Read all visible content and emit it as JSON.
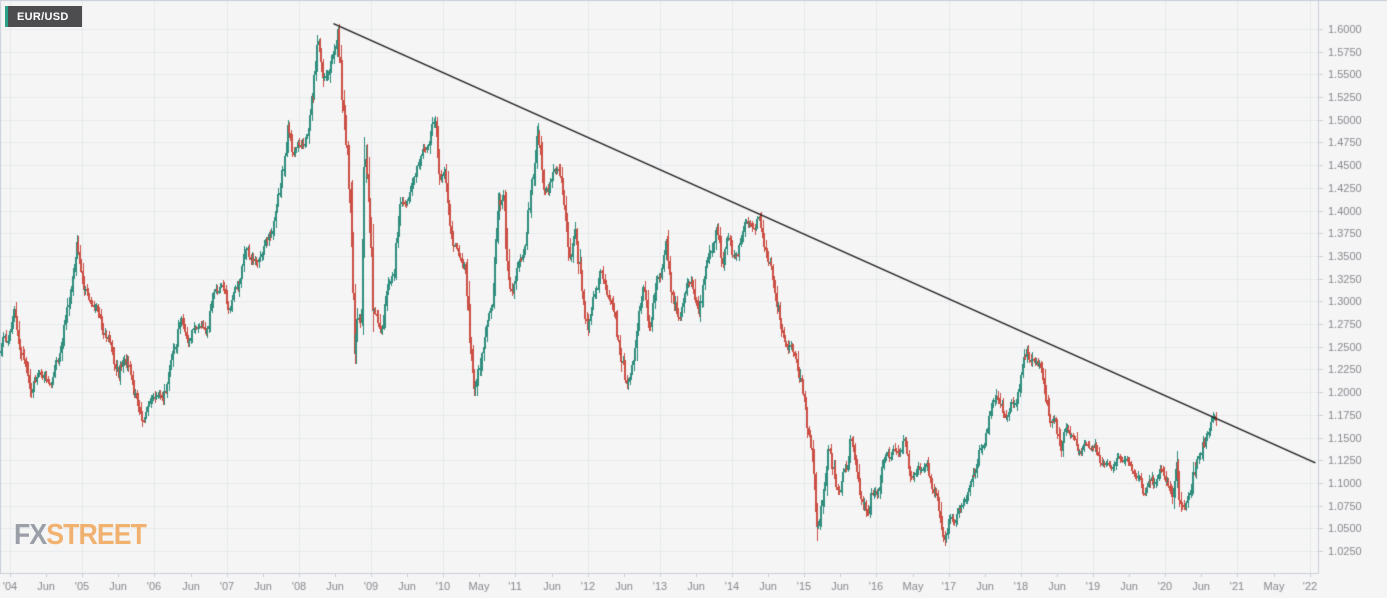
{
  "header": {
    "symbol": "EUR/USD"
  },
  "watermark": {
    "part1": "FX",
    "part2": "STREET"
  },
  "chart_data": {
    "type": "candlestick",
    "title": "EUR/USD weekly candles 2004-2020 with descending trendline from 2008 high projected to 2022",
    "symbol": "EUR/USD",
    "legend_position": "top-left",
    "grid": true,
    "y_axis": {
      "side": "right",
      "min": 1.025,
      "max": 1.6,
      "step": 0.025,
      "tick_labels": [
        "1.6000",
        "1.5750",
        "1.5500",
        "1.5250",
        "1.5000",
        "1.4750",
        "1.4500",
        "1.4250",
        "1.4000",
        "1.3750",
        "1.3500",
        "1.3250",
        "1.3000",
        "1.2750",
        "1.2500",
        "1.2250",
        "1.2000",
        "1.1750",
        "1.1500",
        "1.1250",
        "1.1000",
        "1.0750",
        "1.0500",
        "1.0250"
      ]
    },
    "x_axis": {
      "start_year": 2004,
      "end_year": 2022,
      "tick_interval_years": 0.5,
      "tick_labels": [
        "'04",
        "Jun",
        "'05",
        "Jun",
        "'06",
        "Jun",
        "'07",
        "Jun",
        "'08",
        "Jun",
        "'09",
        "Jun",
        "'10",
        "May",
        "'11",
        "Jun",
        "'12",
        "Jun",
        "'13",
        "Jun",
        "'14",
        "Jun",
        "'15",
        "Jun",
        "'16",
        "May",
        "'17",
        "Jun",
        "'18",
        "Jun",
        "'19",
        "Jun",
        "'20",
        "Jun",
        "'21",
        "May",
        "'22"
      ]
    },
    "trendline": {
      "from_year": 2008.48,
      "from_price": 1.606,
      "to_year": 2022.08,
      "to_price": 1.122,
      "color": "#1f1f1f"
    },
    "generation": {
      "start": 2003.87,
      "end": 2020.71,
      "candles_per_year": 52
    },
    "series_anchor_points": [
      [
        2003.87,
        1.245
      ],
      [
        2004.0,
        1.265
      ],
      [
        2004.08,
        1.288
      ],
      [
        2004.18,
        1.24
      ],
      [
        2004.25,
        1.225
      ],
      [
        2004.33,
        1.2
      ],
      [
        2004.42,
        1.225
      ],
      [
        2004.5,
        1.215
      ],
      [
        2004.58,
        1.21
      ],
      [
        2004.7,
        1.24
      ],
      [
        2004.8,
        1.28
      ],
      [
        2004.95,
        1.358
      ],
      [
        2005.0,
        1.34
      ],
      [
        2005.05,
        1.31
      ],
      [
        2005.15,
        1.3
      ],
      [
        2005.25,
        1.285
      ],
      [
        2005.35,
        1.26
      ],
      [
        2005.45,
        1.245
      ],
      [
        2005.52,
        1.215
      ],
      [
        2005.6,
        1.24
      ],
      [
        2005.7,
        1.215
      ],
      [
        2005.85,
        1.17
      ],
      [
        2005.95,
        1.185
      ],
      [
        2006.05,
        1.2
      ],
      [
        2006.12,
        1.19
      ],
      [
        2006.25,
        1.23
      ],
      [
        2006.38,
        1.28
      ],
      [
        2006.5,
        1.255
      ],
      [
        2006.62,
        1.275
      ],
      [
        2006.73,
        1.265
      ],
      [
        2006.85,
        1.31
      ],
      [
        2006.95,
        1.32
      ],
      [
        2007.05,
        1.295
      ],
      [
        2007.15,
        1.31
      ],
      [
        2007.3,
        1.36
      ],
      [
        2007.42,
        1.34
      ],
      [
        2007.55,
        1.36
      ],
      [
        2007.65,
        1.38
      ],
      [
        2007.75,
        1.42
      ],
      [
        2007.88,
        1.49
      ],
      [
        2007.95,
        1.465
      ],
      [
        2008.05,
        1.475
      ],
      [
        2008.15,
        1.48
      ],
      [
        2008.28,
        1.59
      ],
      [
        2008.35,
        1.555
      ],
      [
        2008.42,
        1.545
      ],
      [
        2008.5,
        1.575
      ],
      [
        2008.56,
        1.6
      ],
      [
        2008.62,
        1.53
      ],
      [
        2008.68,
        1.47
      ],
      [
        2008.73,
        1.41
      ],
      [
        2008.79,
        1.255
      ],
      [
        2008.84,
        1.29
      ],
      [
        2008.88,
        1.255
      ],
      [
        2008.94,
        1.465
      ],
      [
        2009.0,
        1.39
      ],
      [
        2009.05,
        1.29
      ],
      [
        2009.1,
        1.29
      ],
      [
        2009.17,
        1.26
      ],
      [
        2009.25,
        1.32
      ],
      [
        2009.33,
        1.325
      ],
      [
        2009.42,
        1.4
      ],
      [
        2009.5,
        1.41
      ],
      [
        2009.6,
        1.43
      ],
      [
        2009.7,
        1.46
      ],
      [
        2009.8,
        1.47
      ],
      [
        2009.9,
        1.5
      ],
      [
        2009.97,
        1.435
      ],
      [
        2010.05,
        1.44
      ],
      [
        2010.15,
        1.365
      ],
      [
        2010.25,
        1.35
      ],
      [
        2010.33,
        1.33
      ],
      [
        2010.45,
        1.195
      ],
      [
        2010.55,
        1.24
      ],
      [
        2010.62,
        1.27
      ],
      [
        2010.7,
        1.3
      ],
      [
        2010.78,
        1.4
      ],
      [
        2010.85,
        1.42
      ],
      [
        2010.92,
        1.32
      ],
      [
        2010.97,
        1.31
      ],
      [
        2011.05,
        1.34
      ],
      [
        2011.15,
        1.36
      ],
      [
        2011.25,
        1.43
      ],
      [
        2011.33,
        1.488
      ],
      [
        2011.4,
        1.43
      ],
      [
        2011.48,
        1.42
      ],
      [
        2011.55,
        1.45
      ],
      [
        2011.63,
        1.44
      ],
      [
        2011.7,
        1.41
      ],
      [
        2011.78,
        1.34
      ],
      [
        2011.85,
        1.38
      ],
      [
        2011.95,
        1.3
      ],
      [
        2012.03,
        1.27
      ],
      [
        2012.12,
        1.31
      ],
      [
        2012.2,
        1.33
      ],
      [
        2012.3,
        1.31
      ],
      [
        2012.4,
        1.28
      ],
      [
        2012.5,
        1.23
      ],
      [
        2012.56,
        1.21
      ],
      [
        2012.65,
        1.23
      ],
      [
        2012.72,
        1.29
      ],
      [
        2012.8,
        1.31
      ],
      [
        2012.88,
        1.27
      ],
      [
        2012.97,
        1.32
      ],
      [
        2013.05,
        1.34
      ],
      [
        2013.12,
        1.365
      ],
      [
        2013.2,
        1.3
      ],
      [
        2013.28,
        1.28
      ],
      [
        2013.38,
        1.31
      ],
      [
        2013.45,
        1.33
      ],
      [
        2013.55,
        1.28
      ],
      [
        2013.65,
        1.33
      ],
      [
        2013.73,
        1.36
      ],
      [
        2013.82,
        1.38
      ],
      [
        2013.88,
        1.34
      ],
      [
        2013.95,
        1.37
      ],
      [
        2014.03,
        1.355
      ],
      [
        2014.1,
        1.35
      ],
      [
        2014.2,
        1.39
      ],
      [
        2014.3,
        1.38
      ],
      [
        2014.38,
        1.393
      ],
      [
        2014.5,
        1.35
      ],
      [
        2014.6,
        1.32
      ],
      [
        2014.7,
        1.27
      ],
      [
        2014.8,
        1.25
      ],
      [
        2014.9,
        1.24
      ],
      [
        2015.0,
        1.2
      ],
      [
        2015.06,
        1.17
      ],
      [
        2015.13,
        1.13
      ],
      [
        2015.2,
        1.05
      ],
      [
        2015.28,
        1.08
      ],
      [
        2015.36,
        1.14
      ],
      [
        2015.45,
        1.1
      ],
      [
        2015.52,
        1.095
      ],
      [
        2015.6,
        1.115
      ],
      [
        2015.66,
        1.15
      ],
      [
        2015.73,
        1.12
      ],
      [
        2015.8,
        1.09
      ],
      [
        2015.88,
        1.06
      ],
      [
        2015.95,
        1.09
      ],
      [
        2016.03,
        1.085
      ],
      [
        2016.1,
        1.12
      ],
      [
        2016.18,
        1.13
      ],
      [
        2016.25,
        1.14
      ],
      [
        2016.32,
        1.13
      ],
      [
        2016.4,
        1.15
      ],
      [
        2016.48,
        1.11
      ],
      [
        2016.55,
        1.11
      ],
      [
        2016.63,
        1.115
      ],
      [
        2016.7,
        1.12
      ],
      [
        2016.78,
        1.1
      ],
      [
        2016.85,
        1.09
      ],
      [
        2016.9,
        1.06
      ],
      [
        2016.97,
        1.042
      ],
      [
        2017.05,
        1.06
      ],
      [
        2017.12,
        1.06
      ],
      [
        2017.2,
        1.075
      ],
      [
        2017.3,
        1.09
      ],
      [
        2017.4,
        1.12
      ],
      [
        2017.5,
        1.14
      ],
      [
        2017.6,
        1.175
      ],
      [
        2017.68,
        1.2
      ],
      [
        2017.78,
        1.175
      ],
      [
        2017.85,
        1.18
      ],
      [
        2017.95,
        1.19
      ],
      [
        2018.03,
        1.22
      ],
      [
        2018.1,
        1.25
      ],
      [
        2018.18,
        1.23
      ],
      [
        2018.28,
        1.235
      ],
      [
        2018.35,
        1.2
      ],
      [
        2018.42,
        1.17
      ],
      [
        2018.5,
        1.165
      ],
      [
        2018.58,
        1.14
      ],
      [
        2018.65,
        1.16
      ],
      [
        2018.73,
        1.155
      ],
      [
        2018.8,
        1.135
      ],
      [
        2018.88,
        1.14
      ],
      [
        2018.95,
        1.14
      ],
      [
        2019.03,
        1.14
      ],
      [
        2019.1,
        1.13
      ],
      [
        2019.18,
        1.12
      ],
      [
        2019.28,
        1.12
      ],
      [
        2019.35,
        1.125
      ],
      [
        2019.45,
        1.13
      ],
      [
        2019.52,
        1.12
      ],
      [
        2019.6,
        1.11
      ],
      [
        2019.68,
        1.1
      ],
      [
        2019.75,
        1.09
      ],
      [
        2019.83,
        1.105
      ],
      [
        2019.9,
        1.1
      ],
      [
        2019.97,
        1.115
      ],
      [
        2020.05,
        1.1
      ],
      [
        2020.12,
        1.08
      ],
      [
        2020.18,
        1.13
      ],
      [
        2020.23,
        1.07
      ],
      [
        2020.3,
        1.08
      ],
      [
        2020.38,
        1.09
      ],
      [
        2020.45,
        1.13
      ],
      [
        2020.52,
        1.125
      ],
      [
        2020.58,
        1.155
      ],
      [
        2020.65,
        1.162
      ],
      [
        2020.71,
        1.172
      ]
    ],
    "colors": {
      "up": "#2f8e7d",
      "down": "#cb4f44",
      "background": "#f5f5f6",
      "grid": "#e8e9ed",
      "axis_border": "#c9cfda",
      "axis_label": "#8a8a90",
      "badge_background": "#4d4d4f",
      "badge_accent": "#2aa08a",
      "watermark_fx": "#8b909b",
      "watermark_street": "#f0a558"
    }
  }
}
